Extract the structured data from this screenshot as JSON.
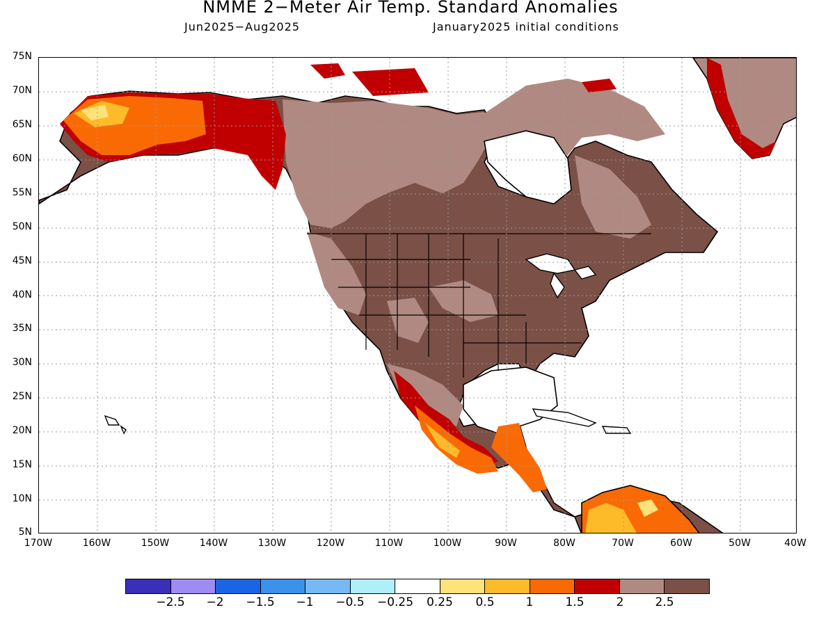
{
  "header": {
    "title": "NMME 2−Meter Air Temp. Standard Anomalies",
    "period": "Jun2025−Aug2025",
    "init": "January2025 initial conditions"
  },
  "axes": {
    "lat_labels": [
      "75N",
      "70N",
      "65N",
      "60N",
      "55N",
      "50N",
      "45N",
      "40N",
      "35N",
      "30N",
      "25N",
      "20N",
      "15N",
      "10N",
      "5N"
    ],
    "lon_labels": [
      "170W",
      "160W",
      "150W",
      "140W",
      "130W",
      "120W",
      "110W",
      "100W",
      "90W",
      "80W",
      "70W",
      "60W",
      "50W",
      "40W"
    ]
  },
  "legend": {
    "labels": [
      "−2.5",
      "−2",
      "−1.5",
      "−1",
      "−0.5",
      "−0.25",
      "0.25",
      "0.5",
      "1",
      "1.5",
      "2",
      "2.5"
    ],
    "colors": [
      "#3a2fb8",
      "#9e8cf2",
      "#1c64e6",
      "#3c91ec",
      "#78b9f4",
      "#b0eefa",
      "#ffffff",
      "#ffe27a",
      "#fdbb2a",
      "#fa6a04",
      "#c00000",
      "#b08a82",
      "#7b5046"
    ]
  },
  "map_colors": {
    "ocean": "#ffffff",
    "land_base": "#7b5046",
    "light_brown": "#b08a82",
    "dark_red": "#c00000",
    "orange": "#fa6a04",
    "light_orange": "#fdbb2a",
    "yellow": "#ffe27a"
  }
}
